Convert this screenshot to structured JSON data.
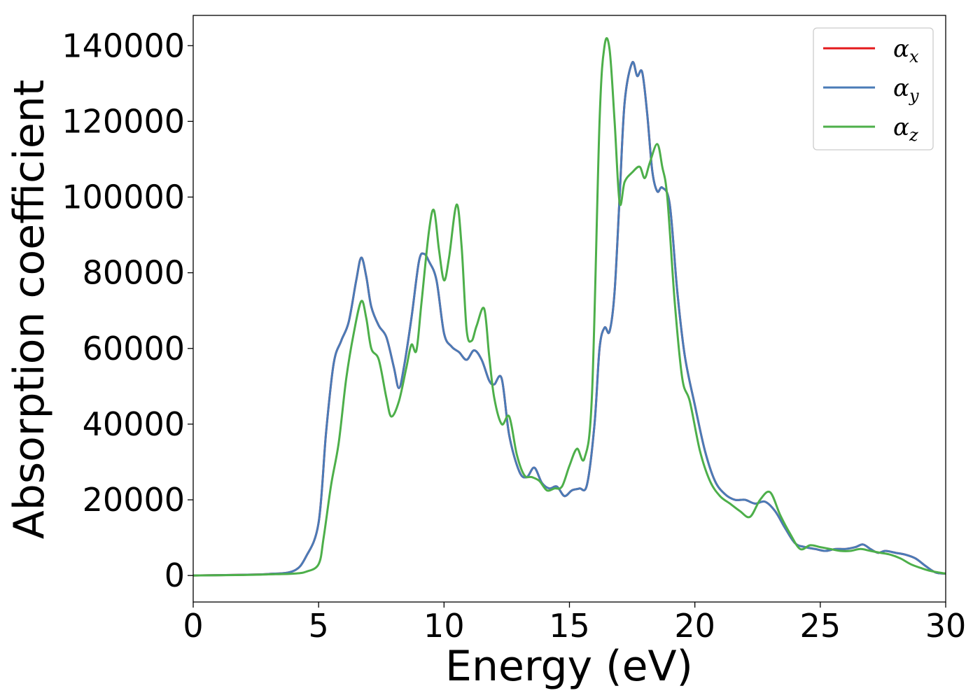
{
  "chart_data": {
    "type": "line",
    "xlabel": "Energy (eV)",
    "ylabel": "Absorption coefficient",
    "xlim": [
      0,
      30
    ],
    "ylim": [
      -7000,
      148000
    ],
    "xticks": [
      0,
      5,
      10,
      15,
      20,
      25,
      30
    ],
    "xtick_labels": [
      "0",
      "5",
      "10",
      "15",
      "20",
      "25",
      "30"
    ],
    "yticks": [
      0,
      20000,
      40000,
      60000,
      80000,
      100000,
      120000,
      140000
    ],
    "ytick_labels": [
      "0",
      "20000",
      "40000",
      "60000",
      "80000",
      "100000",
      "120000",
      "140000"
    ],
    "grid": false,
    "legend_position": "top-right",
    "series": [
      {
        "name": "α_x",
        "legend_symbol": "α",
        "legend_subscript": "x",
        "color": "#e41a1c",
        "x": [
          0,
          2,
          3,
          4,
          4.5,
          5,
          5.3,
          5.6,
          5.9,
          6.2,
          6.5,
          6.7,
          6.9,
          7.1,
          7.4,
          7.7,
          8.0,
          8.2,
          8.4,
          8.7,
          9.0,
          9.2,
          9.4,
          9.7,
          10.0,
          10.3,
          10.6,
          10.9,
          11.2,
          11.5,
          11.8,
          12.0,
          12.3,
          12.6,
          13.0,
          13.3,
          13.6,
          13.9,
          14.2,
          14.5,
          14.8,
          15.1,
          15.4,
          15.7,
          16.0,
          16.2,
          16.4,
          16.6,
          16.8,
          17.0,
          17.2,
          17.5,
          17.7,
          17.9,
          18.1,
          18.3,
          18.5,
          18.7,
          19.0,
          19.3,
          19.6,
          20.0,
          20.4,
          20.8,
          21.2,
          21.6,
          22.0,
          22.4,
          22.8,
          23.2,
          23.6,
          24.0,
          24.4,
          24.8,
          25.2,
          25.6,
          26.0,
          26.4,
          26.7,
          27.0,
          27.3,
          27.6,
          28.0,
          28.4,
          28.8,
          29.2,
          29.6,
          30
        ],
        "y": [
          0,
          200,
          400,
          1200,
          5000,
          14000,
          38000,
          56000,
          62000,
          67000,
          78000,
          84000,
          79000,
          71000,
          66000,
          63000,
          55000,
          49500,
          55000,
          68000,
          83000,
          85000,
          83000,
          78000,
          64000,
          60500,
          59000,
          57000,
          59500,
          57000,
          51500,
          50500,
          52000,
          37000,
          27500,
          26000,
          28500,
          24500,
          23000,
          23500,
          21000,
          22500,
          23000,
          24000,
          40000,
          60000,
          65500,
          64500,
          75000,
          100000,
          125000,
          135500,
          132000,
          133000,
          122000,
          107000,
          101500,
          102500,
          98000,
          75000,
          58000,
          45000,
          33000,
          25000,
          21500,
          20000,
          20000,
          19000,
          19500,
          17000,
          12500,
          8500,
          7500,
          7000,
          6500,
          7000,
          7000,
          7500,
          8200,
          7000,
          6000,
          6500,
          6000,
          5500,
          4500,
          2500,
          800,
          500
        ]
      },
      {
        "name": "α_y",
        "legend_symbol": "α",
        "legend_subscript": "y",
        "color": "#4a7bb7",
        "x": [
          0,
          2,
          3,
          4,
          4.5,
          5,
          5.3,
          5.6,
          5.9,
          6.2,
          6.5,
          6.7,
          6.9,
          7.1,
          7.4,
          7.7,
          8.0,
          8.2,
          8.4,
          8.7,
          9.0,
          9.2,
          9.4,
          9.7,
          10.0,
          10.3,
          10.6,
          10.9,
          11.2,
          11.5,
          11.8,
          12.0,
          12.3,
          12.6,
          13.0,
          13.3,
          13.6,
          13.9,
          14.2,
          14.5,
          14.8,
          15.1,
          15.4,
          15.7,
          16.0,
          16.2,
          16.4,
          16.6,
          16.8,
          17.0,
          17.2,
          17.5,
          17.7,
          17.9,
          18.1,
          18.3,
          18.5,
          18.7,
          19.0,
          19.3,
          19.6,
          20.0,
          20.4,
          20.8,
          21.2,
          21.6,
          22.0,
          22.4,
          22.8,
          23.2,
          23.6,
          24.0,
          24.4,
          24.8,
          25.2,
          25.6,
          26.0,
          26.4,
          26.7,
          27.0,
          27.3,
          27.6,
          28.0,
          28.4,
          28.8,
          29.2,
          29.6,
          30
        ],
        "y": [
          0,
          200,
          400,
          1200,
          5000,
          14000,
          38000,
          56000,
          62000,
          67000,
          78000,
          84000,
          79000,
          71000,
          66000,
          63000,
          55000,
          49500,
          55000,
          68000,
          83000,
          85000,
          83000,
          78000,
          64000,
          60500,
          59000,
          57000,
          59500,
          57000,
          51500,
          50500,
          52000,
          37000,
          27500,
          26000,
          28500,
          24500,
          23000,
          23500,
          21000,
          22500,
          23000,
          24000,
          40000,
          60000,
          65500,
          64500,
          75000,
          100000,
          125000,
          135500,
          132000,
          133000,
          122000,
          107000,
          101500,
          102500,
          98000,
          75000,
          58000,
          45000,
          33000,
          25000,
          21500,
          20000,
          20000,
          19000,
          19500,
          17000,
          12500,
          8500,
          7500,
          7000,
          6500,
          7000,
          7000,
          7500,
          8200,
          7000,
          6000,
          6500,
          6000,
          5500,
          4500,
          2500,
          800,
          500
        ]
      },
      {
        "name": "α_z",
        "legend_symbol": "α",
        "legend_subscript": "z",
        "color": "#4daf4a",
        "x": [
          0,
          2,
          3,
          4,
          4.5,
          5,
          5.2,
          5.5,
          5.8,
          6.1,
          6.4,
          6.7,
          6.9,
          7.1,
          7.4,
          7.7,
          7.9,
          8.2,
          8.5,
          8.7,
          8.9,
          9.1,
          9.4,
          9.6,
          9.8,
          10.0,
          10.2,
          10.5,
          10.7,
          10.9,
          11.1,
          11.3,
          11.6,
          11.8,
          12.0,
          12.3,
          12.6,
          12.9,
          13.2,
          13.5,
          13.8,
          14.1,
          14.4,
          14.7,
          15.0,
          15.3,
          15.6,
          15.9,
          16.2,
          16.4,
          16.6,
          16.8,
          17.0,
          17.2,
          17.5,
          17.8,
          18.0,
          18.2,
          18.5,
          18.7,
          18.9,
          19.2,
          19.5,
          19.8,
          20.2,
          20.6,
          21.0,
          21.4,
          21.8,
          22.2,
          22.6,
          23.0,
          23.4,
          23.8,
          24.2,
          24.6,
          25.0,
          25.4,
          25.8,
          26.2,
          26.6,
          27.0,
          27.4,
          27.8,
          28.2,
          28.6,
          29.0,
          29.4,
          30
        ],
        "y": [
          0,
          150,
          300,
          500,
          1000,
          3000,
          10000,
          24000,
          35000,
          52000,
          64000,
          72500,
          68000,
          60000,
          57000,
          47000,
          42000,
          46000,
          55000,
          61000,
          59500,
          72000,
          91000,
          96500,
          86000,
          78000,
          84000,
          98000,
          87000,
          65000,
          62000,
          66000,
          70500,
          58000,
          47000,
          40000,
          42000,
          32000,
          26500,
          26000,
          25000,
          22500,
          23000,
          23500,
          29000,
          33500,
          31000,
          48000,
          120000,
          140000,
          139000,
          120000,
          98500,
          104000,
          106500,
          108000,
          105000,
          109000,
          114000,
          108000,
          100000,
          72000,
          52000,
          46000,
          33000,
          25000,
          21000,
          19000,
          17000,
          15500,
          20000,
          22000,
          16000,
          11000,
          7000,
          8000,
          7500,
          7000,
          6500,
          6500,
          7000,
          6500,
          6000,
          5500,
          4500,
          3000,
          2000,
          1200,
          500
        ]
      }
    ]
  }
}
